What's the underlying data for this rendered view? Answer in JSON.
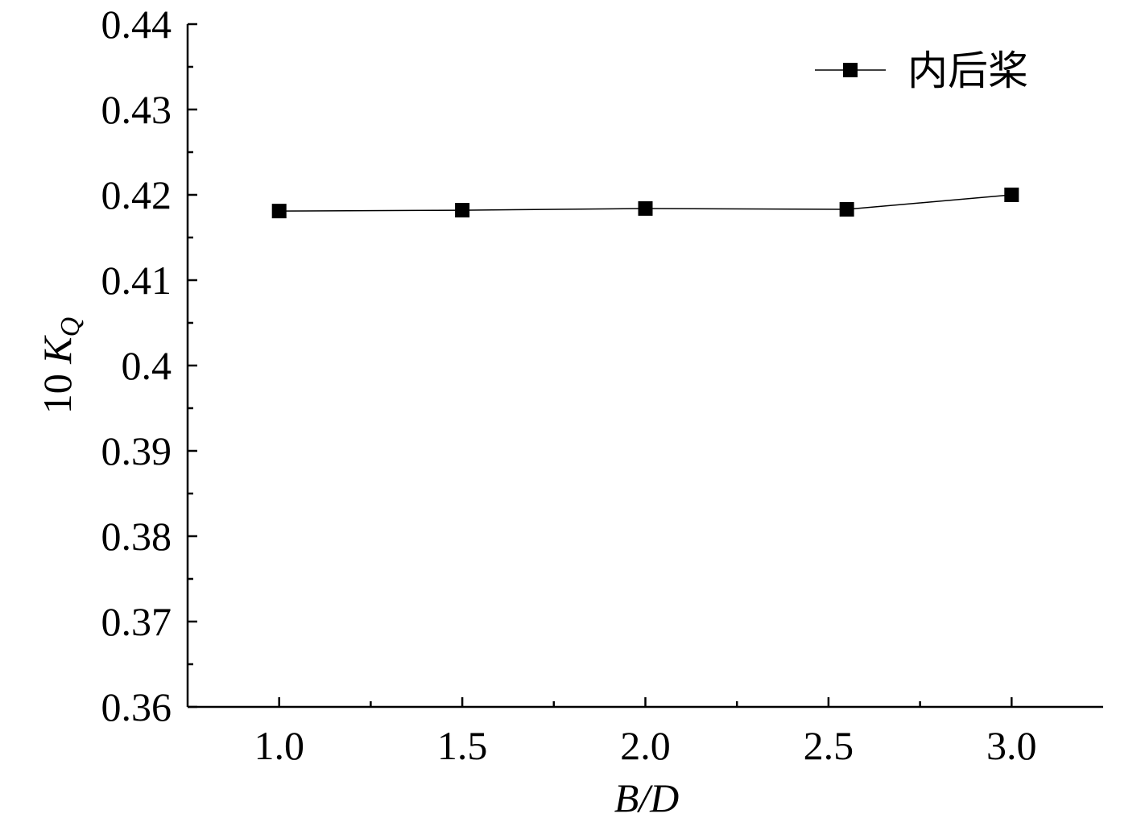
{
  "chart_data": {
    "type": "line",
    "xlabel": "B/D",
    "ylabel_prefix": "10",
    "ylabel_symbol": "K",
    "ylabel_subscript": "Q",
    "x": [
      1.0,
      1.5,
      2.0,
      2.55,
      3.0
    ],
    "series": [
      {
        "name": "内后桨",
        "color": "#000000",
        "values": [
          0.4181,
          0.4182,
          0.4184,
          0.4183,
          0.42
        ]
      }
    ],
    "xlim": [
      0.75,
      3.25
    ],
    "xticks": [
      {
        "value": 1,
        "label": "1.0"
      },
      {
        "value": 1.5,
        "label": "1.5"
      },
      {
        "value": 2,
        "label": "2.0"
      },
      {
        "value": 2.5,
        "label": "2.5"
      },
      {
        "value": 3,
        "label": "3.0"
      }
    ],
    "ylim": [
      0.36,
      0.44
    ],
    "yticks": [
      0.36,
      0.37,
      0.38,
      0.39,
      0.4,
      0.41,
      0.42,
      0.43,
      0.44
    ],
    "legend": "top-right",
    "grid": false
  }
}
